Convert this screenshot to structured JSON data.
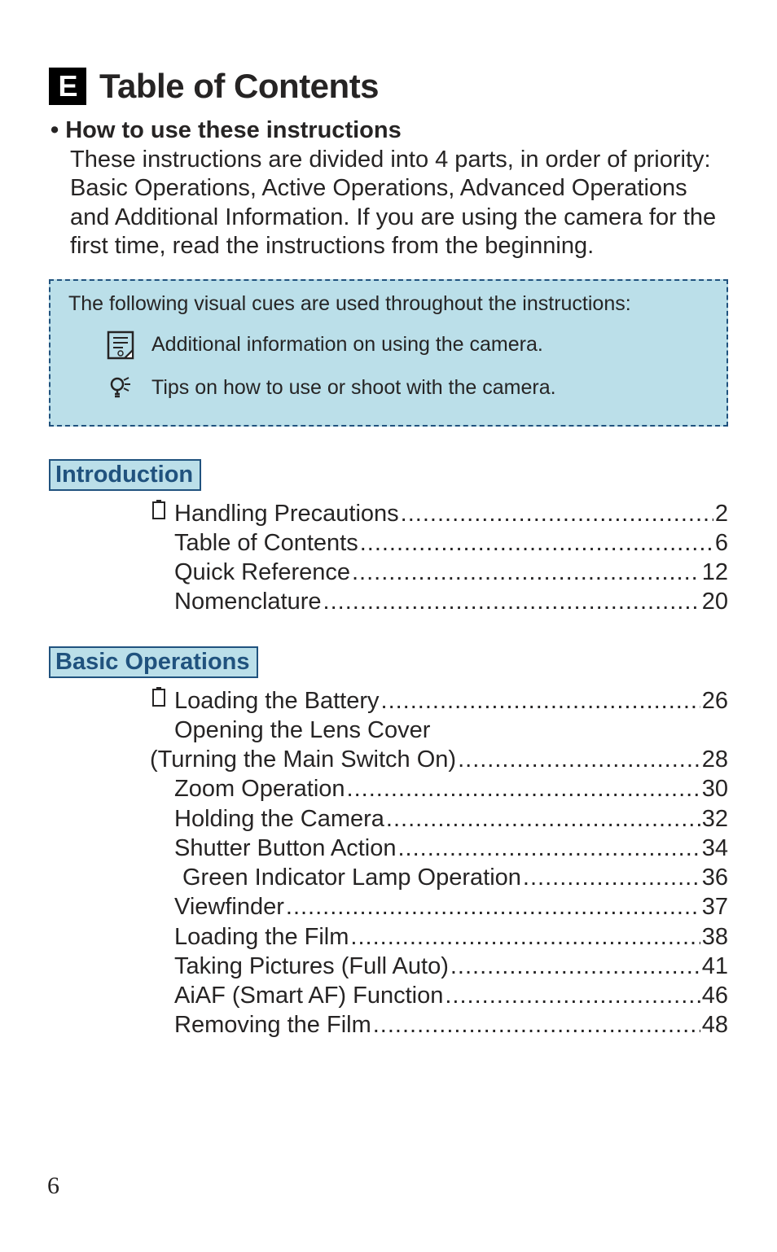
{
  "header": {
    "lang_badge": "E",
    "title": "Table of Contents"
  },
  "howto": {
    "heading": "• How to use these instructions",
    "body": "These instructions are divided into 4 parts, in order of priority: Basic Operations, Active Operations, Advanced Operations and Additional Information. If you are using the camera for the first time, read the instructions from the beginning."
  },
  "cues_box": {
    "intro": "The following visual cues are used throughout the instructions:",
    "rows": [
      {
        "icon": "note",
        "text": "Additional information on using the camera."
      },
      {
        "icon": "tip",
        "text": "Tips on how to use or shoot with the camera."
      }
    ]
  },
  "sections": [
    {
      "heading": "Introduction",
      "items": [
        {
          "icon": "battery",
          "label": "Handling Precautions",
          "page": "2",
          "indent": 0,
          "continuation": false
        },
        {
          "icon": "",
          "label": "Table of Contents",
          "page": "6",
          "indent": 0,
          "continuation": false
        },
        {
          "icon": "",
          "label": "Quick Reference",
          "page": "12",
          "indent": 0,
          "continuation": false
        },
        {
          "icon": "",
          "label": "Nomenclature",
          "page": "20",
          "indent": 0,
          "continuation": false
        }
      ]
    },
    {
      "heading": "Basic Operations",
      "items": [
        {
          "icon": "battery",
          "label": "Loading the Battery",
          "page": "26",
          "indent": 0,
          "continuation": false
        },
        {
          "icon": "",
          "label": "Opening the Lens Cover",
          "page": "",
          "indent": 0,
          "continuation": false
        },
        {
          "icon": "",
          "label": "(Turning the Main Switch On)",
          "page": "28",
          "indent": 0,
          "continuation": true
        },
        {
          "icon": "",
          "label": "Zoom Operation",
          "page": "30",
          "indent": 0,
          "continuation": false
        },
        {
          "icon": "",
          "label": "Holding the Camera",
          "page": "32",
          "indent": 0,
          "continuation": false
        },
        {
          "icon": "",
          "label": "Shutter Button Action",
          "page": "34",
          "indent": 0,
          "continuation": false
        },
        {
          "icon": "",
          "label": "Green Indicator Lamp Operation",
          "page": "36",
          "indent": 1,
          "continuation": false
        },
        {
          "icon": "",
          "label": "Viewfinder",
          "page": "37",
          "indent": 0,
          "continuation": false
        },
        {
          "icon": "",
          "label": "Loading the Film",
          "page": "38",
          "indent": 0,
          "continuation": false
        },
        {
          "icon": "",
          "label": "Taking Pictures (Full Auto)",
          "page": "41",
          "indent": 0,
          "continuation": false
        },
        {
          "icon": "",
          "label": "AiAF (Smart AF) Function",
          "page": "46",
          "indent": 0,
          "continuation": false
        },
        {
          "icon": "",
          "label": "Removing the Film",
          "page": "48",
          "indent": 0,
          "continuation": false
        }
      ]
    }
  ],
  "colors": {
    "box_bg": "#bbdfe9",
    "box_border": "#20527e",
    "text": "#262424",
    "page_bg": "#ffffff",
    "badge_bg": "#000000",
    "badge_fg": "#ffffff"
  },
  "page_number": "6"
}
